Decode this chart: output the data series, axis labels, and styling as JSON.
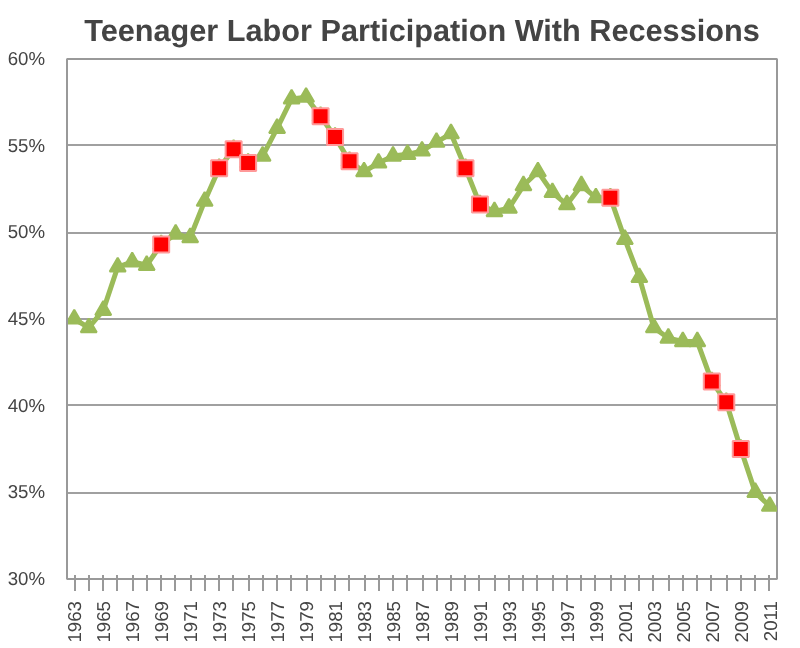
{
  "chart_data": {
    "type": "line",
    "title": "Teenager Labor Participation With Recessions",
    "x": [
      1963,
      1964,
      1965,
      1966,
      1967,
      1968,
      1969,
      1970,
      1971,
      1972,
      1973,
      1974,
      1975,
      1976,
      1977,
      1978,
      1979,
      1980,
      1981,
      1982,
      1983,
      1984,
      1985,
      1986,
      1987,
      1988,
      1989,
      1990,
      1991,
      1992,
      1993,
      1994,
      1995,
      1996,
      1997,
      1998,
      1999,
      2000,
      2001,
      2002,
      2003,
      2004,
      2005,
      2006,
      2007,
      2008,
      2009,
      2010,
      2011
    ],
    "series": [
      {
        "color": "#9bbb59",
        "marker": "triangle",
        "values": [
          45.0,
          44.5,
          45.5,
          48.0,
          48.3,
          48.1,
          49.3,
          49.9,
          49.7,
          51.8,
          53.7,
          54.8,
          54.0,
          54.4,
          56.0,
          57.7,
          57.8,
          56.7,
          55.5,
          54.1,
          53.5,
          54.0,
          54.4,
          54.5,
          54.7,
          55.2,
          55.7,
          53.7,
          51.6,
          51.2,
          51.4,
          52.7,
          53.5,
          52.3,
          51.6,
          52.7,
          52.0,
          52.0,
          49.6,
          47.4,
          44.5,
          43.9,
          43.7,
          43.7,
          41.4,
          40.2,
          37.5,
          35.0,
          34.2
        ]
      },
      {
        "type": "scatter",
        "color": "#ff0000",
        "marker": "square",
        "x": [
          1969,
          1973,
          1974,
          1975,
          1980,
          1981,
          1982,
          1990,
          1991,
          2000,
          2007,
          2008,
          2009
        ],
        "values": [
          49.3,
          53.7,
          54.8,
          54.0,
          56.7,
          55.5,
          54.1,
          53.7,
          51.6,
          52.0,
          41.4,
          40.2,
          37.5
        ]
      }
    ],
    "xlim": [
      1962.5,
      2011.5
    ],
    "xticks": [
      1963,
      {
        "value": 1964,
        "label": null
      },
      1965,
      {
        "value": 1966,
        "label": null
      },
      1967,
      {
        "value": 1968,
        "label": null
      },
      1969,
      {
        "value": 1970,
        "label": null
      },
      1971,
      {
        "value": 1972,
        "label": null
      },
      1973,
      {
        "value": 1974,
        "label": null
      },
      1975,
      {
        "value": 1976,
        "label": null
      },
      1977,
      {
        "value": 1978,
        "label": null
      },
      1979,
      {
        "value": 1980,
        "label": null
      },
      1981,
      {
        "value": 1982,
        "label": null
      },
      1983,
      {
        "value": 1984,
        "label": null
      },
      1985,
      {
        "value": 1986,
        "label": null
      },
      1987,
      {
        "value": 1988,
        "label": null
      },
      1989,
      {
        "value": 1990,
        "label": null
      },
      1991,
      {
        "value": 1992,
        "label": null
      },
      1993,
      {
        "value": 1994,
        "label": null
      },
      1995,
      {
        "value": 1996,
        "label": null
      },
      1997,
      {
        "value": 1998,
        "label": null
      },
      1999,
      {
        "value": 2000,
        "label": null
      },
      2001,
      {
        "value": 2002,
        "label": null
      },
      2003,
      {
        "value": 2004,
        "label": null
      },
      2005,
      {
        "value": 2006,
        "label": null
      },
      2007,
      {
        "value": 2008,
        "label": null
      },
      2009,
      {
        "value": 2010,
        "label": null
      },
      2011
    ],
    "ylim": [
      30,
      60
    ],
    "yticks": [
      {
        "value": 30,
        "label": "30%"
      },
      {
        "value": 35,
        "label": "35%"
      },
      {
        "value": 40,
        "label": "40%"
      },
      {
        "value": 45,
        "label": "45%"
      },
      {
        "value": 50,
        "label": "50%"
      },
      {
        "value": 55,
        "label": "55%"
      },
      {
        "value": 60,
        "label": "60%"
      }
    ],
    "grid": "y"
  }
}
